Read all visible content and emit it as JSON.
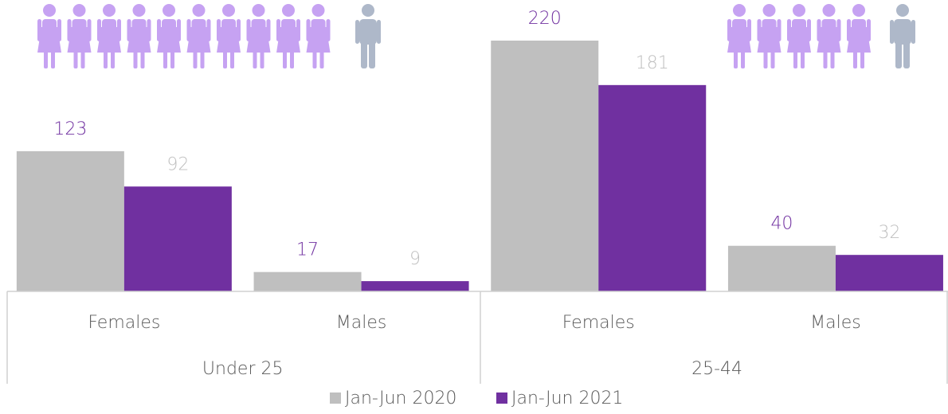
{
  "chart_data": {
    "type": "bar",
    "groups": [
      "Under 25",
      "25-44"
    ],
    "categories": [
      "Females",
      "Males",
      "Females",
      "Males"
    ],
    "series": [
      {
        "name": "Jan-Jun 2020",
        "color": "#bfbfbf",
        "label_color": "#7030a0",
        "values": [
          123,
          17,
          220,
          40
        ]
      },
      {
        "name": "Jan-Jun 2021",
        "color": "#7030a0",
        "label_color": "#bfbfbf",
        "values": [
          92,
          9,
          181,
          32
        ]
      }
    ],
    "legend": "bottom"
  }
}
